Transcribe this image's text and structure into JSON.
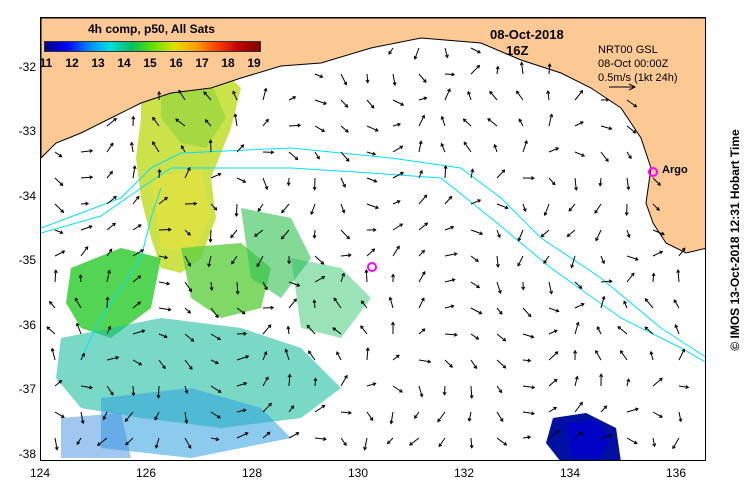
{
  "map": {
    "colorbar": {
      "title": "4h comp, p50, All Sats",
      "ticks": [
        "11",
        "12",
        "13",
        "14",
        "15",
        "16",
        "17",
        "18",
        "19"
      ]
    },
    "date_label": "08-Oct-2018",
    "time_label": "16Z",
    "info_lines": [
      "NRT00 GSL",
      "08-Oct 00:00Z",
      "0.5m/s (1kt 24h)"
    ],
    "argo_label": "Argo",
    "credit": "© IMOS 13-Oct-2018 12:31 Hobart Time",
    "y_ticks": [
      "-32",
      "-33",
      "-34",
      "-35",
      "-36",
      "-37",
      "-38"
    ],
    "x_ticks": [
      "124",
      "126",
      "128",
      "130",
      "132",
      "134",
      "136"
    ],
    "colors": {
      "land": "#fcc893",
      "coastline": "#000000",
      "isobath": "#00e0ff",
      "argo": "#ff00ff",
      "background": "#ffffff"
    }
  }
}
